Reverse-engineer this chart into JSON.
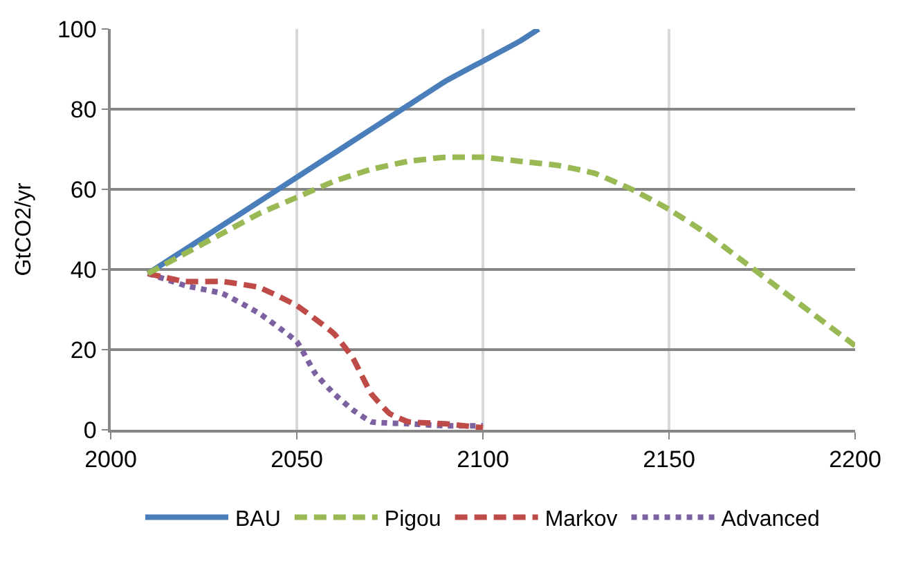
{
  "chart_data": {
    "type": "line",
    "ylabel": "GtCO2/yr",
    "xlim": [
      2000,
      2200
    ],
    "xticks": [
      2000,
      2050,
      2100,
      2150,
      2200
    ],
    "ylim": [
      0,
      100
    ],
    "yticks": [
      0,
      20,
      40,
      60,
      80,
      100
    ],
    "grid": true,
    "legend": "bottom",
    "marker": "none",
    "series": [
      {
        "name": "BAU",
        "color": "#4a7ebb",
        "line_style": "solid",
        "x": [
          2010,
          2020,
          2030,
          2040,
          2050,
          2060,
          2070,
          2080,
          2090,
          2100,
          2110,
          2115
        ],
        "values": [
          39,
          45,
          51,
          57,
          63,
          69,
          75,
          81,
          87,
          92,
          97,
          100
        ]
      },
      {
        "name": "Pigou",
        "color": "#98b954",
        "line_style": "dashed",
        "x": [
          2010,
          2020,
          2030,
          2040,
          2050,
          2060,
          2070,
          2080,
          2090,
          2100,
          2110,
          2120,
          2130,
          2140,
          2150,
          2160,
          2170,
          2180,
          2190,
          2200
        ],
        "values": [
          39,
          44,
          49,
          54,
          58,
          62,
          65,
          67,
          68,
          68,
          67,
          66,
          64,
          60,
          55,
          49,
          42,
          35,
          28,
          21
        ]
      },
      {
        "name": "Markov",
        "color": "#be4b48",
        "line_style": "dashed",
        "x": [
          2010,
          2020,
          2030,
          2040,
          2050,
          2060,
          2065,
          2070,
          2075,
          2080,
          2090,
          2100
        ],
        "values": [
          39,
          37,
          37,
          35.5,
          31,
          24,
          18,
          9,
          4,
          2,
          1.5,
          0.5
        ]
      },
      {
        "name": "Advanced",
        "color": "#7d60a0",
        "line_style": "dotted",
        "x": [
          2010,
          2020,
          2030,
          2040,
          2050,
          2055,
          2060,
          2065,
          2070,
          2080,
          2090,
          2100
        ],
        "values": [
          39,
          36,
          34,
          29,
          22,
          14,
          9,
          5,
          2,
          1.5,
          1,
          1
        ]
      }
    ]
  }
}
